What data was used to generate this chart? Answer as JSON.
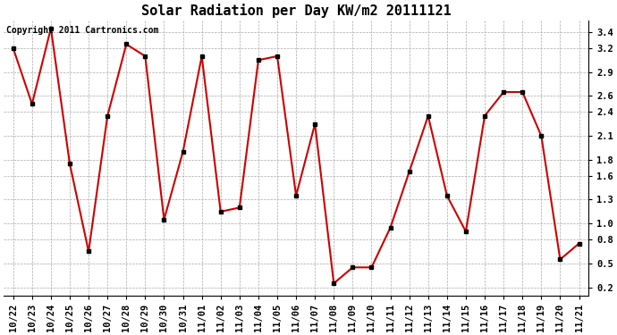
{
  "title": "Solar Radiation per Day KW/m2 20111121",
  "copyright_text": "Copyright 2011 Cartronics.com",
  "x_labels": [
    "10/22",
    "10/23",
    "10/24",
    "10/25",
    "10/26",
    "10/27",
    "10/28",
    "10/29",
    "10/30",
    "10/31",
    "11/01",
    "11/02",
    "11/03",
    "11/04",
    "11/05",
    "11/06",
    "11/07",
    "11/08",
    "11/09",
    "11/10",
    "11/11",
    "11/12",
    "11/13",
    "11/14",
    "11/15",
    "11/16",
    "11/17",
    "11/18",
    "11/19",
    "11/20",
    "11/21"
  ],
  "y_values": [
    3.2,
    2.5,
    3.45,
    1.75,
    0.65,
    2.35,
    3.25,
    3.1,
    1.05,
    1.9,
    3.1,
    1.15,
    1.2,
    3.05,
    3.1,
    1.35,
    2.25,
    0.25,
    0.45,
    0.45,
    0.95,
    1.65,
    2.35,
    1.35,
    0.9,
    2.35,
    2.65,
    2.65,
    2.1,
    0.55,
    0.75
  ],
  "line_color": "#cc0000",
  "marker": "s",
  "marker_size": 3,
  "marker_color": "#000000",
  "ylim": [
    0.1,
    3.55
  ],
  "yticks": [
    0.2,
    0.5,
    0.8,
    1.0,
    1.3,
    1.6,
    1.8,
    2.1,
    2.4,
    2.6,
    2.9,
    3.2,
    3.4
  ],
  "background_color": "#ffffff",
  "grid_color": "#aaaaaa",
  "title_fontsize": 11,
  "copyright_fontsize": 7,
  "tick_fontsize": 7.5
}
